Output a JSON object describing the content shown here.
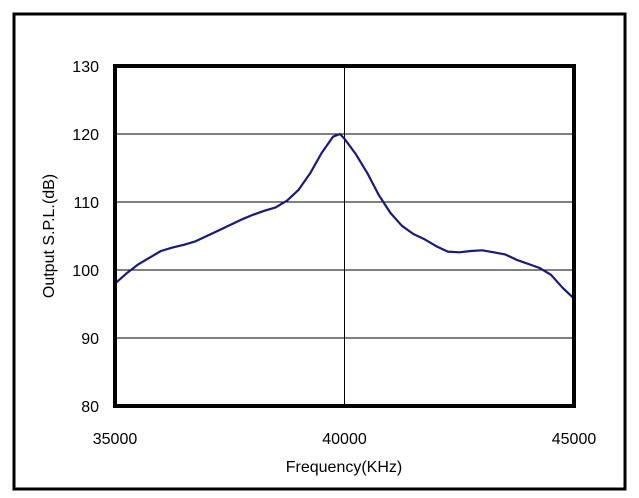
{
  "chart_data": {
    "type": "line",
    "title": "",
    "xlabel": "Frequency(KHz)",
    "ylabel": "Output S.P.L.(dB)",
    "xlim": [
      35000,
      45000
    ],
    "ylim": [
      80,
      130
    ],
    "x_ticks": [
      35000,
      40000,
      45000
    ],
    "y_ticks": [
      80,
      90,
      100,
      110,
      120,
      130
    ],
    "x_tick_labels": [
      "35000",
      "40000",
      "45000"
    ],
    "y_tick_labels": [
      "80",
      "90",
      "100",
      "110",
      "120",
      "130"
    ],
    "grid": "on",
    "legend": "none",
    "series_color": "#1a1a7a",
    "series": [
      {
        "x": [
          35000,
          35250,
          35500,
          35750,
          36000,
          36250,
          36500,
          36750,
          37000,
          37250,
          37500,
          37750,
          38000,
          38250,
          38500,
          38750,
          39000,
          39250,
          39500,
          39750,
          39900,
          40000,
          40250,
          40500,
          40750,
          41000,
          41250,
          41500,
          41750,
          42000,
          42250,
          42500,
          42750,
          43000,
          43250,
          43500,
          43750,
          44000,
          44250,
          44500,
          44750,
          45000
        ],
        "values": [
          98,
          99.5,
          100.8,
          101.8,
          102.8,
          103.3,
          103.7,
          104.2,
          105.0,
          105.8,
          106.6,
          107.4,
          108.1,
          108.7,
          109.2,
          110.2,
          111.8,
          114.2,
          117.2,
          119.6,
          120.0,
          119.3,
          117.0,
          114.2,
          111.0,
          108.4,
          106.5,
          105.3,
          104.5,
          103.5,
          102.7,
          102.6,
          102.8,
          102.9,
          102.6,
          102.3,
          101.5,
          100.9,
          100.3,
          99.3,
          97.4,
          95.8
        ]
      }
    ]
  }
}
